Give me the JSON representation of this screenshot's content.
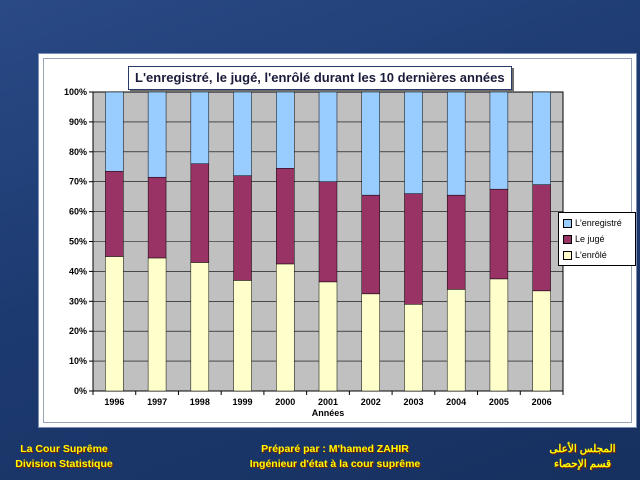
{
  "colors": {
    "enregistre": "#99ccff",
    "juge": "#993366",
    "enrole": "#ffffcc",
    "plot_bg": "#c0c0c0",
    "footer_text": "#ffff00"
  },
  "chart_data": {
    "type": "bar",
    "stacked": true,
    "title": "L'enregistré, le jugé, l'enrôlé durant les 10 dernières années",
    "xlabel": "Années",
    "ylabel": "",
    "categories": [
      "1996",
      "1997",
      "1998",
      "1999",
      "2000",
      "2001",
      "2002",
      "2003",
      "2004",
      "2005",
      "2006"
    ],
    "y_ticks": [
      "0%",
      "10%",
      "20%",
      "30%",
      "40%",
      "50%",
      "60%",
      "70%",
      "80%",
      "90%",
      "100%"
    ],
    "ylim": [
      0,
      100
    ],
    "grid": true,
    "legend_position": "right",
    "series": [
      {
        "name": "L'enrôlé",
        "values": [
          45,
          44.5,
          43,
          37,
          42.5,
          36.5,
          32.5,
          29,
          34,
          37.5,
          33.5
        ]
      },
      {
        "name": "Le jugé",
        "values": [
          28.5,
          27,
          33,
          35,
          32,
          33.5,
          33,
          37,
          31.5,
          30,
          35.5
        ]
      },
      {
        "name": "L'enregistré",
        "values": [
          26.5,
          28.5,
          24,
          28,
          25.5,
          30,
          34.5,
          34,
          34.5,
          32.5,
          31
        ]
      }
    ]
  },
  "legend": {
    "enregistre": "L'enregistré",
    "juge": "Le jugé",
    "enrole": "L'enrôlé"
  },
  "footer": {
    "left_line1": "La Cour Suprême",
    "left_line2": "Division Statistique",
    "center_line1": "Préparé par : M'hamed ZAHIR",
    "center_line2": "Ingénieur d'état à la cour suprême",
    "right_line1": "المجلس الأعلى",
    "right_line2": "قسم الإحصاء"
  }
}
